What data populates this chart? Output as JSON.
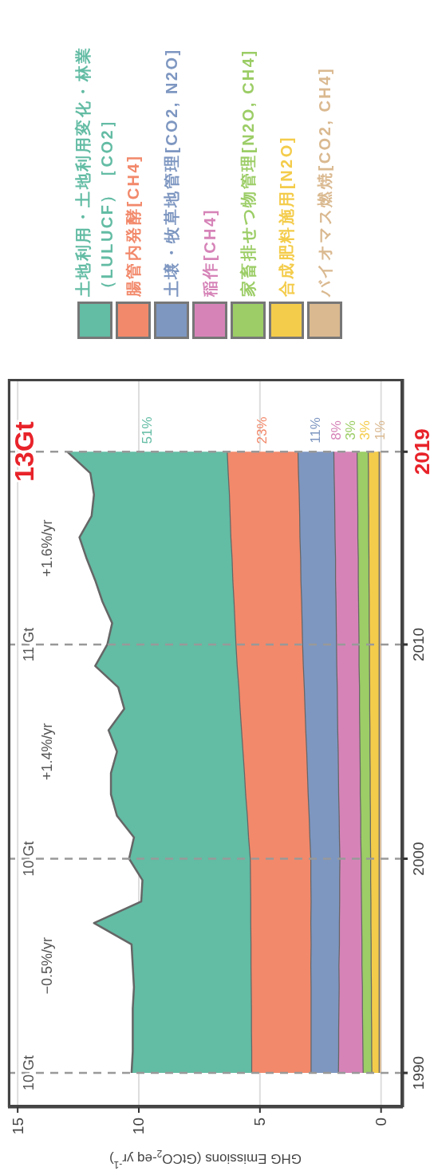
{
  "chart_data": {
    "type": "area",
    "stacked": true,
    "orientation": "horizontal",
    "x": [
      1990,
      1991,
      1992,
      1993,
      1994,
      1995,
      1996,
      1997,
      1998,
      1999,
      2000,
      2001,
      2002,
      2003,
      2004,
      2005,
      2006,
      2007,
      2008,
      2009,
      2010,
      2011,
      2012,
      2013,
      2014,
      2015,
      2016,
      2017,
      2018,
      2019
    ],
    "series": [
      {
        "name": "バイオマス燃焼[CO2, CH4]",
        "color": "#dab990",
        "values": [
          0.1,
          0.1,
          0.1,
          0.1,
          0.1,
          0.1,
          0.1,
          0.1,
          0.1,
          0.1,
          0.1,
          0.1,
          0.1,
          0.1,
          0.1,
          0.1,
          0.1,
          0.1,
          0.1,
          0.1,
          0.1,
          0.1,
          0.1,
          0.1,
          0.1,
          0.1,
          0.1,
          0.1,
          0.1,
          0.1
        ]
      },
      {
        "name": "合成肥料施用[N2O]",
        "color": "#f4cc4b",
        "values": [
          0.3,
          0.31,
          0.31,
          0.32,
          0.32,
          0.33,
          0.33,
          0.34,
          0.34,
          0.35,
          0.35,
          0.36,
          0.36,
          0.37,
          0.37,
          0.38,
          0.38,
          0.39,
          0.39,
          0.4,
          0.4,
          0.41,
          0.41,
          0.42,
          0.42,
          0.43,
          0.43,
          0.44,
          0.44,
          0.45
        ]
      },
      {
        "name": "家畜排せつ物管理[N2O, CH4]",
        "color": "#9ccd66",
        "values": [
          0.36,
          0.36,
          0.37,
          0.37,
          0.37,
          0.38,
          0.38,
          0.38,
          0.39,
          0.39,
          0.39,
          0.4,
          0.4,
          0.41,
          0.41,
          0.41,
          0.42,
          0.42,
          0.42,
          0.43,
          0.43,
          0.43,
          0.44,
          0.44,
          0.44,
          0.45,
          0.45,
          0.45,
          0.46,
          0.46
        ]
      },
      {
        "name": "稲作[CH4]",
        "color": "#d684b8",
        "values": [
          1.02,
          1.0,
          0.99,
          0.97,
          0.96,
          0.95,
          0.93,
          0.92,
          0.9,
          0.89,
          0.88,
          0.88,
          0.89,
          0.89,
          0.9,
          0.9,
          0.91,
          0.91,
          0.92,
          0.92,
          0.93,
          0.93,
          0.93,
          0.94,
          0.94,
          0.94,
          0.95,
          0.95,
          0.96,
          0.96
        ]
      },
      {
        "name": "土壌・牧草地管理[CO2, N2O]",
        "color": "#7e97c1",
        "values": [
          1.13,
          1.14,
          1.14,
          1.15,
          1.16,
          1.16,
          1.17,
          1.18,
          1.18,
          1.19,
          1.2,
          1.22,
          1.24,
          1.26,
          1.28,
          1.3,
          1.32,
          1.34,
          1.36,
          1.38,
          1.4,
          1.41,
          1.42,
          1.43,
          1.44,
          1.45,
          1.45,
          1.46,
          1.47,
          1.48
        ]
      },
      {
        "name": "腸管内発酵[CH4]",
        "color": "#f2896b",
        "values": [
          2.45,
          2.45,
          2.46,
          2.46,
          2.47,
          2.47,
          2.48,
          2.48,
          2.49,
          2.49,
          2.5,
          2.53,
          2.55,
          2.58,
          2.6,
          2.63,
          2.65,
          2.68,
          2.7,
          2.73,
          2.75,
          2.77,
          2.79,
          2.81,
          2.83,
          2.85,
          2.87,
          2.88,
          2.9,
          2.92
        ]
      },
      {
        "name": "土地利用・土地利用変化・林業（LULUCF）［CO2］",
        "color": "#63bca4",
        "values": [
          4.94,
          4.89,
          4.88,
          4.88,
          4.82,
          4.86,
          4.91,
          6.45,
          4.5,
          4.44,
          4.98,
          4.71,
          5.36,
          5.54,
          5.49,
          5.18,
          5.47,
          4.76,
          4.96,
          5.84,
          5.29,
          5.05,
          5.41,
          5.66,
          5.98,
          6.23,
          5.7,
          5.57,
          5.67,
          6.58
        ]
      }
    ],
    "xlim": [
      15.4,
      -0.9
    ],
    "xticks": [
      15,
      10,
      5,
      0
    ],
    "ylim": [
      1988.4,
      2022.4
    ],
    "yticks": [
      1990,
      2000,
      2010,
      2019
    ],
    "xlabel": "GHG Emissions (GtCO$_{2}$-eq yr$^{-1}$)",
    "grid": "x",
    "legend": "top",
    "ref_lines": [
      {
        "axis": "y",
        "value": 1990,
        "label": "10 Gt",
        "line_style": "dashed",
        "color": "#999999"
      },
      {
        "axis": "y",
        "value": 2000,
        "label": "10 Gt",
        "line_style": "dashed",
        "color": "#999999"
      },
      {
        "axis": "y",
        "value": 2010,
        "label": "11 Gt",
        "line_style": "dashed",
        "color": "#999999"
      },
      {
        "axis": "y",
        "value": 2019,
        "label": "13Gt",
        "line_style": "dashed",
        "color": "#999999"
      }
    ],
    "annotations": [
      "−0.5%/yr",
      "+1.4%/yr",
      "+1.6%/yr",
      "51%",
      "23%",
      "11%",
      "8%",
      "3%",
      "3%",
      "1%"
    ]
  }
}
